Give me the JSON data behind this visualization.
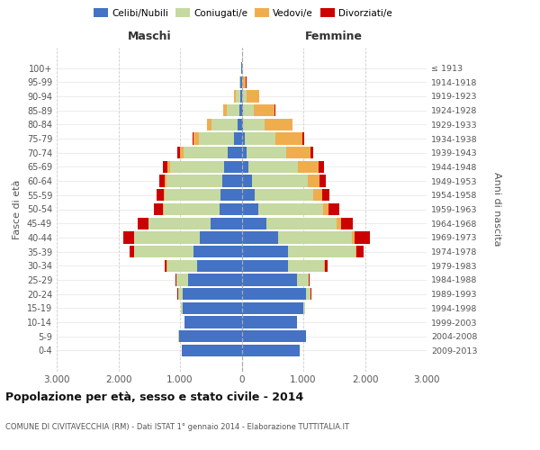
{
  "age_groups": [
    "0-4",
    "5-9",
    "10-14",
    "15-19",
    "20-24",
    "25-29",
    "30-34",
    "35-39",
    "40-44",
    "45-49",
    "50-54",
    "55-59",
    "60-64",
    "65-69",
    "70-74",
    "75-79",
    "80-84",
    "85-89",
    "90-94",
    "95-99",
    "100+"
  ],
  "anni_nascita": [
    "2009-2013",
    "2004-2008",
    "1999-2003",
    "1994-1998",
    "1989-1993",
    "1984-1988",
    "1979-1983",
    "1974-1978",
    "1969-1973",
    "1964-1968",
    "1959-1963",
    "1954-1958",
    "1949-1953",
    "1944-1948",
    "1939-1943",
    "1934-1938",
    "1929-1933",
    "1924-1928",
    "1919-1923",
    "1914-1918",
    "≤ 1913"
  ],
  "maschi_celibi": [
    970,
    1020,
    920,
    960,
    960,
    870,
    720,
    780,
    680,
    500,
    360,
    340,
    310,
    290,
    220,
    120,
    70,
    40,
    20,
    15,
    5
  ],
  "maschi_coniugati": [
    3,
    3,
    8,
    28,
    75,
    190,
    490,
    960,
    1060,
    1010,
    910,
    910,
    910,
    870,
    720,
    580,
    420,
    200,
    75,
    18,
    3
  ],
  "maschi_vedovi": [
    0,
    0,
    0,
    0,
    1,
    4,
    4,
    4,
    8,
    8,
    9,
    18,
    28,
    45,
    65,
    75,
    75,
    55,
    25,
    8,
    1
  ],
  "maschi_divorziati": [
    0,
    0,
    0,
    1,
    4,
    8,
    28,
    75,
    175,
    175,
    145,
    115,
    95,
    75,
    45,
    18,
    4,
    4,
    4,
    1,
    0
  ],
  "femmine_nubili": [
    945,
    1045,
    895,
    995,
    1045,
    895,
    745,
    745,
    595,
    395,
    275,
    215,
    175,
    115,
    78,
    48,
    28,
    18,
    8,
    8,
    3
  ],
  "femmine_coniugate": [
    3,
    3,
    8,
    28,
    75,
    195,
    595,
    1095,
    1195,
    1145,
    1045,
    945,
    895,
    795,
    645,
    495,
    345,
    175,
    75,
    18,
    3
  ],
  "femmine_vedove": [
    0,
    0,
    0,
    0,
    1,
    3,
    8,
    18,
    48,
    75,
    95,
    145,
    195,
    345,
    395,
    445,
    445,
    345,
    195,
    45,
    8
  ],
  "femmine_divorziate": [
    0,
    0,
    0,
    1,
    4,
    8,
    48,
    115,
    245,
    195,
    165,
    115,
    95,
    78,
    48,
    28,
    8,
    4,
    4,
    4,
    0
  ],
  "color_celibi": "#4472c4",
  "color_coniugati": "#c5d9a0",
  "color_vedovi": "#f0ad4e",
  "color_divorziati": "#cc0000",
  "xlim": 3000,
  "xticks": [
    -3000,
    -2000,
    -1000,
    0,
    1000,
    2000,
    3000
  ],
  "xtick_labels": [
    "3.000",
    "2.000",
    "1.000",
    "0",
    "1.000",
    "2.000",
    "3.000"
  ],
  "title": "Popolazione per età, sesso e stato civile - 2014",
  "subtitle": "COMUNE DI CIVITAVECCHIA (RM) - Dati ISTAT 1° gennaio 2014 - Elaborazione TUTTITALIA.IT",
  "ylabel_left": "Fasce di età",
  "ylabel_right": "Anni di nascita",
  "label_maschi": "Maschi",
  "label_femmine": "Femmine",
  "legend_labels": [
    "Celibi/Nubili",
    "Coniugati/e",
    "Vedovi/e",
    "Divorziati/e"
  ],
  "bar_height": 0.85
}
